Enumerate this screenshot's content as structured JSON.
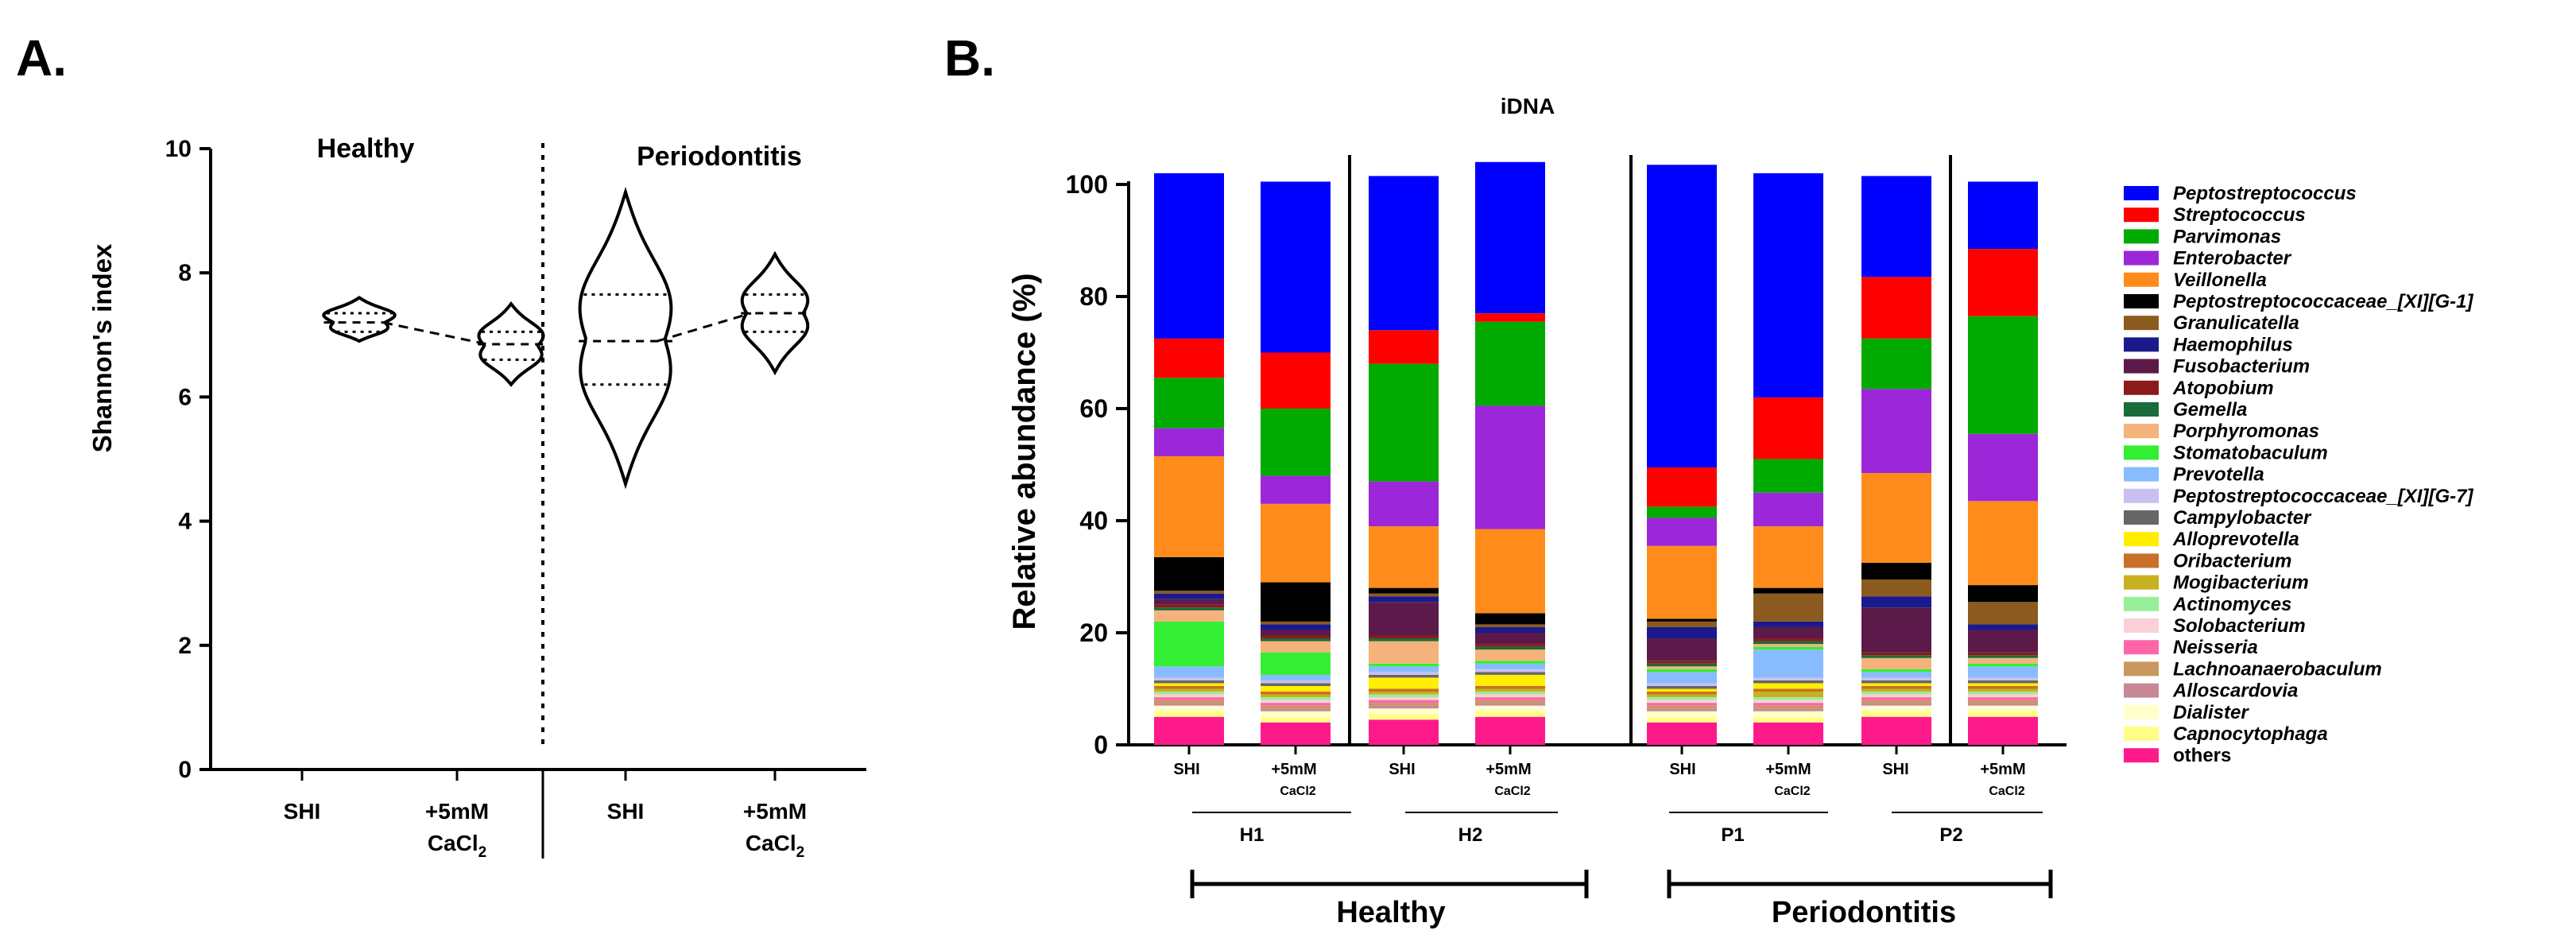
{
  "panel_a": {
    "letter": "A.",
    "section_left": "Healthy",
    "section_right": "Periodontitis",
    "xticks": [
      "SHI",
      "+5mM",
      "CaCl",
      "SHI",
      "+5mM",
      "CaCl"
    ],
    "subscript": "2"
  },
  "panel_b": {
    "letter": "B.",
    "title": "iDNA",
    "sample_row": [
      "SHI",
      "+5mM",
      "CaCl2",
      "SHI",
      "+5mM",
      "CaCl2",
      "SHI",
      "+5mM",
      "CaCl2",
      "SHI",
      "+5mM",
      "CaCl2"
    ],
    "subjects": [
      "H1",
      "H2",
      "P1",
      "P2"
    ],
    "groups": [
      "Healthy",
      "Periodontitis"
    ]
  },
  "colors": {
    "bar_colors": [
      "#0000ff",
      "#ff0000",
      "#00aa00",
      "#9c27d8",
      "#ff8c1a",
      "#000000",
      "#8b5a1e",
      "#1a1a8c",
      "#5c1a4a",
      "#8b1a1a",
      "#1a6b3a",
      "#f5b27a",
      "#33ee33",
      "#88bbff",
      "#c8c0f0",
      "#666666",
      "#ffee00",
      "#c87028",
      "#c8b020",
      "#99ee99",
      "#fcd0d8",
      "#ff66aa",
      "#c89860",
      "#c88898",
      "#ffffcc",
      "#ffff88",
      "#ff1a8c"
    ]
  },
  "chart_data": [
    {
      "type": "violin",
      "title": "",
      "xlabel": "",
      "ylabel": "Shannon's index",
      "ylim": [
        0,
        10
      ],
      "yticks": [
        0,
        2,
        4,
        6,
        8,
        10
      ],
      "categories": [
        "SHI",
        "+5mM CaCl2",
        "SHI",
        "+5mM CaCl2"
      ],
      "groups": [
        "Healthy",
        "Healthy",
        "Periodontitis",
        "Periodontitis"
      ],
      "series": [
        {
          "name": "Healthy SHI",
          "min": 6.9,
          "max": 7.6,
          "q1": 7.05,
          "median": 7.2,
          "q3": 7.35
        },
        {
          "name": "Healthy +5mM CaCl2",
          "min": 6.2,
          "max": 7.5,
          "q1": 6.6,
          "median": 6.85,
          "q3": 7.05
        },
        {
          "name": "Periodontitis SHI",
          "min": 4.6,
          "max": 9.3,
          "q1": 6.2,
          "median": 6.9,
          "q3": 7.65
        },
        {
          "name": "Periodontitis +5mM CaCl2",
          "min": 6.4,
          "max": 8.3,
          "q1": 7.05,
          "median": 7.35,
          "q3": 7.65
        }
      ]
    },
    {
      "type": "bar",
      "stacked": true,
      "title": "iDNA",
      "xlabel": "",
      "ylabel": "Relative abundance (%)",
      "ylim": [
        0,
        100
      ],
      "yticks": [
        0,
        20,
        40,
        60,
        80,
        100
      ],
      "categories": [
        "H1 SHI",
        "H1 +5mM CaCl2",
        "H2 SHI",
        "H2 +5mM CaCl2",
        "P1 SHI",
        "P1 +5mM CaCl2",
        "P2 SHI",
        "P2 +5mM CaCl2"
      ],
      "legend": [
        "Peptostreptococcus",
        "Streptococcus",
        "Parvimonas",
        "Enterobacter",
        "Veillonella",
        "Peptostreptococcaceae_[XI][G-1]",
        "Granulicatella",
        "Haemophilus",
        "Fusobacterium",
        "Atopobium",
        "Gemella",
        "Porphyromonas",
        "Stomatobaculum",
        "Prevotella",
        "Peptostreptococcaceae_[XI][G-7]",
        "Campylobacter",
        "Alloprevotella",
        "Oribacterium",
        "Mogibacterium",
        "Actinomyces",
        "Solobacterium",
        "Neisseria",
        "Lachnoanaerobaculum",
        "Alloscardovia",
        "Dialister",
        "Capnocytophaga",
        "others"
      ],
      "legend_italic_count": 26,
      "series": [
        {
          "name": "others",
          "values": [
            5,
            4,
            4.5,
            5,
            4,
            4,
            5,
            5
          ]
        },
        {
          "name": "Capnocytophaga",
          "values": [
            1,
            1,
            1,
            1,
            1,
            1,
            1,
            1
          ]
        },
        {
          "name": "Dialister",
          "values": [
            1,
            1,
            1,
            1,
            1,
            1,
            1,
            1
          ]
        },
        {
          "name": "Alloscardovia",
          "values": [
            0.5,
            0.5,
            0.5,
            0.5,
            0.5,
            0.5,
            0.5,
            0.5
          ]
        },
        {
          "name": "Lachnoanaerobaculum",
          "values": [
            0.5,
            0.5,
            0.5,
            0.5,
            0.5,
            0.5,
            0.5,
            0.5
          ]
        },
        {
          "name": "Neisseria",
          "values": [
            0.5,
            0.5,
            0.5,
            0.5,
            0.5,
            0.5,
            0.5,
            0.5
          ]
        },
        {
          "name": "Solobacterium",
          "values": [
            0.5,
            0.5,
            0.5,
            0.5,
            0.5,
            0.5,
            0.5,
            0.5
          ]
        },
        {
          "name": "Actinomyces",
          "values": [
            0.5,
            0.5,
            0.5,
            0.5,
            0.5,
            0.5,
            0.5,
            0.5
          ]
        },
        {
          "name": "Mogibacterium",
          "values": [
            0.5,
            0.5,
            0.5,
            0.5,
            0.5,
            1,
            0.5,
            0.5
          ]
        },
        {
          "name": "Oribacterium",
          "values": [
            0.5,
            0.5,
            0.5,
            0.5,
            0.5,
            0.5,
            0.5,
            0.5
          ]
        },
        {
          "name": "Alloprevotella",
          "values": [
            0.5,
            1,
            2,
            2,
            0.5,
            1,
            0.5,
            0.5
          ]
        },
        {
          "name": "Campylobacter",
          "values": [
            0.5,
            0.5,
            0.5,
            0.5,
            0.5,
            0.5,
            0.5,
            0.5
          ]
        },
        {
          "name": "Peptostreptococcaceae_[XI][G-7]",
          "values": [
            0.5,
            0.5,
            0.5,
            0.5,
            0.5,
            0.5,
            0.5,
            0.5
          ]
        },
        {
          "name": "Prevotella",
          "values": [
            2,
            1,
            1,
            1,
            2,
            5,
            1,
            2
          ]
        },
        {
          "name": "Stomatobaculum",
          "values": [
            8,
            4,
            0.5,
            0.5,
            0.5,
            0.5,
            0.5,
            0.5
          ]
        },
        {
          "name": "Porphyromonas",
          "values": [
            2,
            2,
            4,
            2,
            0.5,
            0.5,
            2,
            1
          ]
        },
        {
          "name": "Gemella",
          "values": [
            0.5,
            0.5,
            0.5,
            0.5,
            0.5,
            0.5,
            0.5,
            0.5
          ]
        },
        {
          "name": "Atopobium",
          "values": [
            0.5,
            0.5,
            0.5,
            0.5,
            0.5,
            0.5,
            0.5,
            0.5
          ]
        },
        {
          "name": "Fusobacterium",
          "values": [
            1,
            1,
            6,
            2,
            4,
            2,
            8,
            4
          ]
        },
        {
          "name": "Haemophilus",
          "values": [
            1,
            1,
            1,
            1,
            2,
            1,
            2,
            1
          ]
        },
        {
          "name": "Granulicatella",
          "values": [
            0.5,
            0.5,
            0.5,
            0.5,
            1,
            5,
            3,
            4
          ]
        },
        {
          "name": "Peptostreptococcaceae_[XI][G-1]",
          "values": [
            6,
            7,
            1,
            2,
            0.5,
            1,
            3,
            3
          ]
        },
        {
          "name": "Veillonella",
          "values": [
            18,
            14,
            11,
            15,
            13,
            11,
            16,
            15
          ]
        },
        {
          "name": "Enterobacter",
          "values": [
            5,
            5,
            8,
            22,
            5,
            6,
            15,
            12
          ]
        },
        {
          "name": "Parvimonas",
          "values": [
            9,
            12,
            21,
            15,
            2,
            6,
            9,
            21
          ]
        },
        {
          "name": "Streptococcus",
          "values": [
            7,
            10,
            6,
            1.5,
            7,
            11,
            11,
            12
          ]
        },
        {
          "name": "Peptostreptococcus",
          "values": [
            29.5,
            30.5,
            27.5,
            27,
            54,
            40,
            18,
            12
          ]
        }
      ]
    }
  ]
}
